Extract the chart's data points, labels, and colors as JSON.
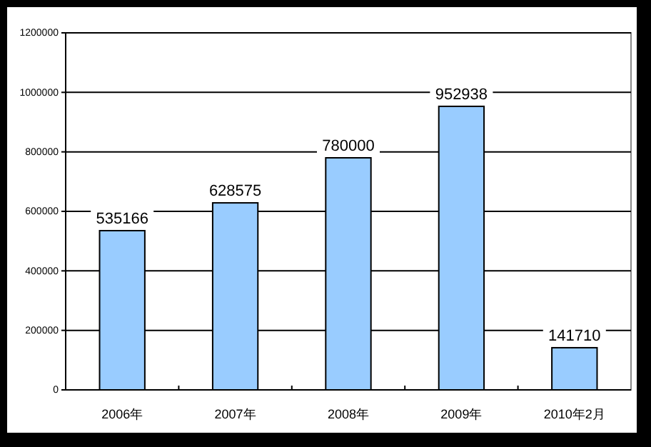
{
  "chart_data": {
    "type": "bar",
    "categories": [
      "2006年",
      "2007年",
      "2008年",
      "2009年",
      "2010年2月"
    ],
    "values": [
      535166,
      628575,
      780000,
      952938,
      141710
    ],
    "color": "#99ccff",
    "ylim": [
      0,
      1200000
    ],
    "yticks": [
      0,
      200000,
      400000,
      600000,
      800000,
      1000000,
      1200000
    ],
    "grid": "y",
    "data_labels": true
  }
}
